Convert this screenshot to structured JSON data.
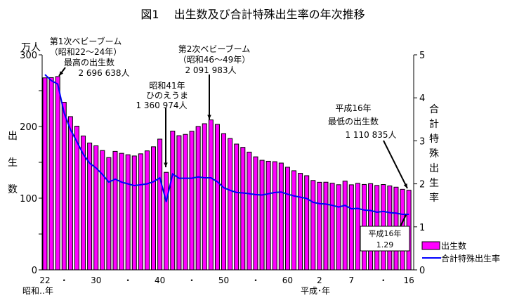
{
  "chart_data": {
    "type": "bar+line",
    "title": "図1　 出生数及び合計特殊出生率の年次推移",
    "left_axis": {
      "unit": "万人",
      "label": "出生数",
      "ylim": [
        0,
        300
      ],
      "ticks": [
        "0",
        "100",
        "200",
        "300"
      ]
    },
    "right_axis": {
      "label": "合計特殊出生率",
      "ylim": [
        0,
        5
      ],
      "ticks": [
        "0",
        "1",
        "2",
        "3",
        "4",
        "5"
      ]
    },
    "x_tick_labels": [
      "22",
      "・",
      "30",
      "・",
      "40",
      "・",
      "50",
      "・",
      "60",
      "2",
      "7",
      "・",
      "16"
    ],
    "x_era_labels": {
      "showa": "昭和‥年",
      "heisei": "平成･年"
    },
    "legend": {
      "position": "bottom-right",
      "bar": "出生数",
      "line": "合計特殊出生率"
    },
    "colors": {
      "bar": "#ff00ff",
      "line": "#0000ff"
    },
    "years": [
      1947,
      1948,
      1949,
      1950,
      1951,
      1952,
      1953,
      1954,
      1955,
      1956,
      1957,
      1958,
      1959,
      1960,
      1961,
      1962,
      1963,
      1964,
      1965,
      1966,
      1967,
      1968,
      1969,
      1970,
      1971,
      1972,
      1973,
      1974,
      1975,
      1976,
      1977,
      1978,
      1979,
      1980,
      1981,
      1982,
      1983,
      1984,
      1985,
      1986,
      1987,
      1988,
      1989,
      1990,
      1991,
      1992,
      1993,
      1994,
      1995,
      1996,
      1997,
      1998,
      1999,
      2000,
      2001,
      2002,
      2003,
      2004
    ],
    "series": [
      {
        "name": "出生数",
        "type": "bar",
        "values": [
          267.9,
          268.2,
          269.7,
          233.8,
          213.8,
          200.5,
          186.8,
          177.0,
          173.1,
          166.5,
          156.7,
          165.3,
          162.6,
          160.6,
          158.9,
          161.9,
          166.0,
          171.7,
          182.4,
          136.1,
          193.6,
          187.2,
          189.0,
          193.4,
          200.1,
          203.9,
          209.2,
          203.0,
          190.1,
          183.3,
          175.5,
          170.9,
          164.3,
          157.7,
          152.9,
          151.5,
          150.9,
          149.0,
          143.2,
          138.3,
          134.7,
          131.4,
          124.7,
          122.2,
          122.3,
          120.9,
          118.8,
          123.8,
          118.7,
          120.7,
          119.2,
          120.3,
          117.8,
          119.1,
          117.1,
          115.4,
          112.4,
          111.1
        ]
      },
      {
        "name": "合計特殊出生率",
        "type": "line",
        "values": [
          4.54,
          4.4,
          4.32,
          3.65,
          3.26,
          2.98,
          2.69,
          2.48,
          2.37,
          2.22,
          2.04,
          2.11,
          2.04,
          2.0,
          1.96,
          1.98,
          2.0,
          2.05,
          2.14,
          1.58,
          2.23,
          2.13,
          2.13,
          2.13,
          2.16,
          2.14,
          2.14,
          2.05,
          1.91,
          1.85,
          1.8,
          1.79,
          1.77,
          1.75,
          1.74,
          1.77,
          1.8,
          1.81,
          1.76,
          1.72,
          1.69,
          1.66,
          1.57,
          1.54,
          1.53,
          1.5,
          1.46,
          1.5,
          1.42,
          1.43,
          1.39,
          1.38,
          1.34,
          1.36,
          1.33,
          1.32,
          1.29,
          1.29
        ]
      }
    ],
    "annotations": [
      {
        "lines": [
          "第1次ベビーブーム",
          "（昭和22～24年）",
          "最高の出生数",
          "2 696 638人"
        ]
      },
      {
        "lines": [
          "昭和41年",
          "ひのえうま",
          "1 360 974人"
        ]
      },
      {
        "lines": [
          "第2次ベビーブーム",
          "（昭和46～49年）",
          "2 091 983人"
        ]
      },
      {
        "lines": [
          "平成16年",
          "最低の出生数",
          "1 110 835人"
        ]
      },
      {
        "lines": [
          "平成16年",
          "1.29"
        ]
      }
    ]
  }
}
